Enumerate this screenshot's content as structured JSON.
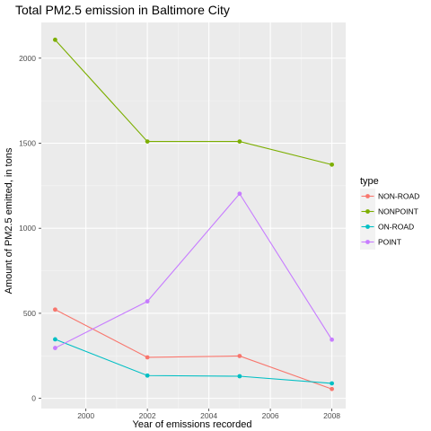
{
  "chart_data": {
    "type": "line",
    "title": "Total PM2.5 emission in Baltimore City",
    "xlabel": "Year of emissions recorded",
    "ylabel": "Amount of PM2.5 emitted, in tons",
    "x": [
      1999,
      2002,
      2005,
      2008
    ],
    "xlim": [
      1998.55,
      2008.45
    ],
    "ylim": [
      -60,
      2210
    ],
    "xticks": [
      2000,
      2002,
      2004,
      2006,
      2008
    ],
    "yticks": [
      0,
      500,
      1000,
      1500,
      2000
    ],
    "grid": true,
    "legend": {
      "title": "type",
      "position": "right"
    },
    "series": [
      {
        "name": "NON-ROAD",
        "color": "#F8766D",
        "values": [
          522,
          241,
          249,
          55
        ]
      },
      {
        "name": "NONPOINT",
        "color": "#7CAE00",
        "values": [
          2108,
          1510,
          1510,
          1374
        ]
      },
      {
        "name": "ON-ROAD",
        "color": "#00BFC4",
        "values": [
          347,
          134,
          130,
          88
        ]
      },
      {
        "name": "POINT",
        "color": "#C77CFF",
        "values": [
          296,
          570,
          1203,
          345
        ]
      }
    ]
  }
}
